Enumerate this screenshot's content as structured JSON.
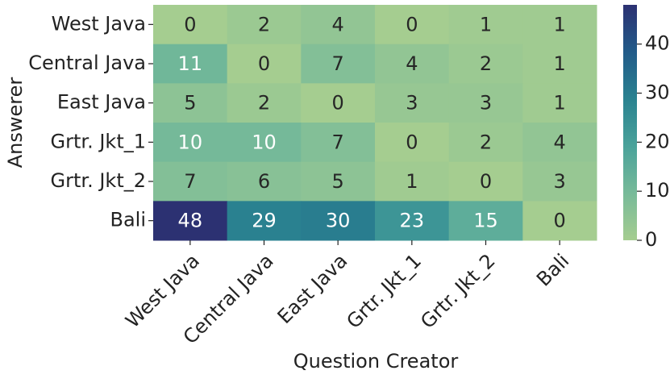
{
  "chart_data": {
    "type": "heatmap",
    "x_label": "Question Creator",
    "y_label": "Answerer",
    "x_categories": [
      "West Java",
      "Central Java",
      "East Java",
      "Grtr. Jkt_1",
      "Grtr. Jkt_2",
      "Bali"
    ],
    "y_categories": [
      "West Java",
      "Central Java",
      "East Java",
      "Grtr. Jkt_1",
      "Grtr. Jkt_2",
      "Bali"
    ],
    "values": [
      [
        0,
        2,
        4,
        0,
        1,
        1
      ],
      [
        11,
        0,
        7,
        4,
        2,
        1
      ],
      [
        5,
        2,
        0,
        3,
        3,
        1
      ],
      [
        10,
        10,
        7,
        0,
        2,
        4
      ],
      [
        7,
        6,
        5,
        1,
        0,
        3
      ],
      [
        48,
        29,
        30,
        23,
        15,
        0
      ]
    ],
    "clim": [
      0,
      48
    ],
    "cticks": [
      0,
      10,
      20,
      30,
      40
    ],
    "colormap": [
      "#a5cd90",
      "#77ba99",
      "#4aa29a",
      "#2a8290",
      "#225b89",
      "#2c3172"
    ]
  }
}
